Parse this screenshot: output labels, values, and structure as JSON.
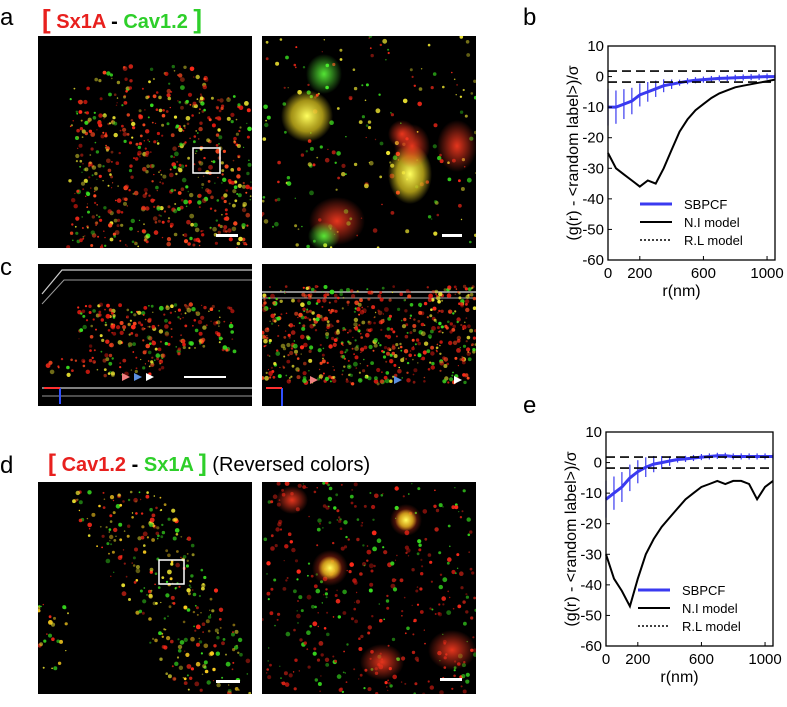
{
  "panels": {
    "a": {
      "letter": "a",
      "label_open": "[",
      "label_part1": "Sx1A",
      "label_dash": "-",
      "label_part2": "Cav1.2",
      "label_close": "]"
    },
    "b": {
      "letter": "b"
    },
    "c": {
      "letter": "c"
    },
    "d": {
      "letter": "d",
      "label_open": "[",
      "label_part1": "Cav1.2",
      "label_dash": "-",
      "label_part2": "Sx1A",
      "label_close": "]",
      "note": "(Reversed colors)"
    },
    "e": {
      "letter": "e"
    }
  },
  "colors": {
    "red": "#e8201e",
    "green": "#2ecf2a",
    "series_blue": "#3a3af0",
    "black": "#000000"
  },
  "chart_data": [
    {
      "type": "line",
      "panel": "b",
      "ylabel": "(g(r) - <random label>)/σ",
      "xlabel": "r(nm)",
      "xlim": [
        0,
        1050
      ],
      "ylim": [
        -60,
        10
      ],
      "xticks": [
        0,
        200,
        600,
        1000
      ],
      "yticks": [
        10,
        0,
        -10,
        -20,
        -30,
        -40,
        -50,
        -60
      ],
      "legend": [
        "SBPCF",
        "N.I model",
        "R.L model"
      ],
      "legend_position": "bottom-right",
      "series": [
        {
          "name": "SBPCF",
          "x": [
            0,
            50,
            100,
            150,
            200,
            250,
            300,
            350,
            400,
            450,
            500,
            550,
            600,
            650,
            700,
            750,
            800,
            850,
            900,
            950,
            1000,
            1050
          ],
          "y": [
            -10,
            -10,
            -9,
            -8,
            -6,
            -5,
            -4,
            -3,
            -2.5,
            -2,
            -1.5,
            -1.2,
            -1,
            -0.8,
            -0.6,
            -0.5,
            -0.4,
            -0.3,
            -0.2,
            -0.1,
            0,
            0
          ]
        },
        {
          "name": "N.I model",
          "x": [
            0,
            50,
            100,
            150,
            200,
            250,
            300,
            350,
            400,
            450,
            500,
            550,
            600,
            650,
            700,
            750,
            800,
            850,
            900,
            950,
            1000,
            1050
          ],
          "y": [
            -25,
            -30,
            -32,
            -34,
            -36,
            -34,
            -35,
            -30,
            -24,
            -18,
            -14,
            -11,
            -9,
            -7,
            -5.5,
            -4.5,
            -3.5,
            -3,
            -2.5,
            -2,
            -1.5,
            -1
          ]
        },
        {
          "name": "R.L model",
          "x": [
            0,
            1050
          ],
          "y": [
            1.8,
            1.8
          ]
        },
        {
          "name": "R.L model lower",
          "x": [
            0,
            1050
          ],
          "y": [
            -1.8,
            -1.8
          ]
        }
      ]
    },
    {
      "type": "line",
      "panel": "e",
      "ylabel": "(g(r) - <random label>)/σ",
      "xlabel": "r(nm)",
      "xlim": [
        0,
        1050
      ],
      "ylim": [
        -60,
        10
      ],
      "xticks": [
        0,
        200,
        600,
        1000
      ],
      "yticks": [
        10,
        0,
        -10,
        -20,
        -30,
        -40,
        -50,
        -60
      ],
      "legend": [
        "SBPCF",
        "N.I model",
        "R.L model"
      ],
      "legend_position": "bottom-right",
      "series": [
        {
          "name": "SBPCF",
          "x": [
            0,
            50,
            100,
            150,
            200,
            250,
            300,
            350,
            400,
            450,
            500,
            550,
            600,
            650,
            700,
            750,
            800,
            850,
            900,
            950,
            1000,
            1050
          ],
          "y": [
            -12,
            -10,
            -8,
            -5,
            -3,
            -1.5,
            -0.5,
            0,
            0.5,
            1,
            1.2,
            1.5,
            1.8,
            2,
            2.2,
            2.2,
            2,
            2,
            2,
            2,
            2,
            2
          ]
        },
        {
          "name": "N.I model",
          "x": [
            0,
            50,
            100,
            150,
            200,
            250,
            300,
            350,
            400,
            450,
            500,
            550,
            600,
            650,
            700,
            750,
            800,
            850,
            900,
            950,
            1000,
            1050
          ],
          "y": [
            -30,
            -38,
            -42,
            -47,
            -38,
            -30,
            -25,
            -21,
            -18,
            -15,
            -12,
            -10,
            -8,
            -7,
            -6,
            -7,
            -6,
            -6,
            -7,
            -12,
            -8,
            -6
          ]
        },
        {
          "name": "R.L model",
          "x": [
            0,
            1050
          ],
          "y": [
            1.8,
            1.8
          ]
        },
        {
          "name": "R.L model lower",
          "x": [
            0,
            1050
          ],
          "y": [
            -1.8,
            -1.8
          ]
        }
      ]
    }
  ]
}
